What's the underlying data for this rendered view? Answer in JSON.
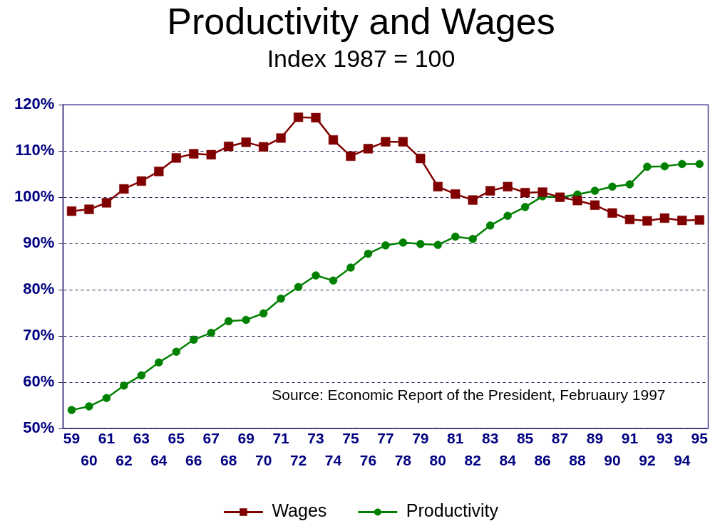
{
  "chart_data": {
    "type": "line",
    "title": "Productivity and Wages",
    "subtitle": "Index 1987 = 100",
    "categories": [
      "59",
      "60",
      "61",
      "62",
      "63",
      "64",
      "65",
      "66",
      "67",
      "68",
      "69",
      "70",
      "71",
      "72",
      "73",
      "74",
      "75",
      "76",
      "77",
      "78",
      "79",
      "80",
      "81",
      "82",
      "83",
      "84",
      "85",
      "86",
      "87",
      "88",
      "89",
      "90",
      "91",
      "92",
      "93",
      "94",
      "95"
    ],
    "series": [
      {
        "name": "Wages",
        "color": "#800000",
        "marker": "square",
        "values": [
          97.0,
          97.4,
          98.8,
          101.8,
          103.5,
          105.6,
          108.5,
          109.4,
          109.2,
          111.0,
          111.9,
          110.9,
          112.8,
          117.3,
          117.2,
          112.4,
          108.9,
          110.5,
          112.0,
          112.0,
          108.4,
          102.3,
          100.7,
          99.4,
          101.4,
          102.3,
          101.0,
          101.1,
          100.0,
          99.3,
          98.3,
          96.6,
          95.2,
          94.9,
          95.5,
          95.0,
          95.1
        ]
      },
      {
        "name": "Productivity",
        "color": "#008000",
        "marker": "circle",
        "values": [
          54.0,
          54.8,
          56.6,
          59.3,
          61.5,
          64.3,
          66.6,
          69.2,
          70.7,
          73.2,
          73.5,
          74.9,
          78.1,
          80.6,
          83.1,
          82.0,
          84.8,
          87.8,
          89.6,
          90.2,
          89.9,
          89.7,
          91.5,
          91.0,
          93.9,
          96.0,
          97.9,
          100.2,
          100.0,
          100.6,
          101.4,
          102.3,
          102.8,
          106.6,
          106.7,
          107.2,
          107.2
        ]
      }
    ],
    "ylim": [
      50,
      120
    ],
    "yticks": [
      {
        "value": 50,
        "label": "50%"
      },
      {
        "value": 60,
        "label": "60%"
      },
      {
        "value": 70,
        "label": "70%"
      },
      {
        "value": 80,
        "label": "80%"
      },
      {
        "value": 90,
        "label": "90%"
      },
      {
        "value": 100,
        "label": "100%"
      },
      {
        "value": 110,
        "label": "110%"
      },
      {
        "value": 120,
        "label": "120%"
      }
    ],
    "grid": "y",
    "legend": "bottom",
    "line_style": "solid",
    "annotations": [
      "Source: Economic Report of the President, Februaury 1997"
    ]
  }
}
